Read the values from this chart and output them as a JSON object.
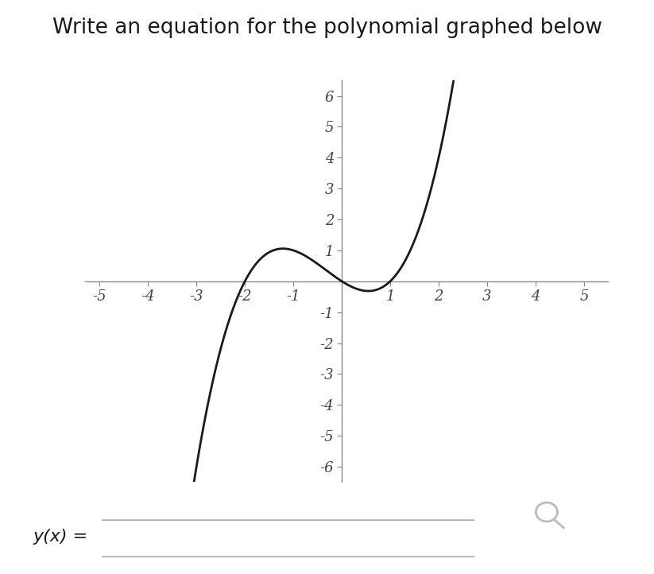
{
  "title": "Write an equation for the polynomial graphed below",
  "title_fontsize": 19,
  "xlim": [
    -5.3,
    5.5
  ],
  "ylim": [
    -6.5,
    6.5
  ],
  "xticks": [
    -5,
    -4,
    -3,
    -2,
    -1,
    1,
    2,
    3,
    4,
    5
  ],
  "yticks": [
    -6,
    -5,
    -4,
    -3,
    -2,
    -1,
    1,
    2,
    3,
    4,
    5,
    6
  ],
  "curve_color": "#1a1a1a",
  "curve_linewidth": 2.0,
  "roots": [
    -2,
    0,
    1
  ],
  "scale": 0.5,
  "background_color": "#ffffff",
  "axis_color": "#888888",
  "tick_color": "#888888",
  "label_color": "#444444",
  "ylabel_box_text": "y(x) =",
  "ylabel_box_fontsize": 16
}
